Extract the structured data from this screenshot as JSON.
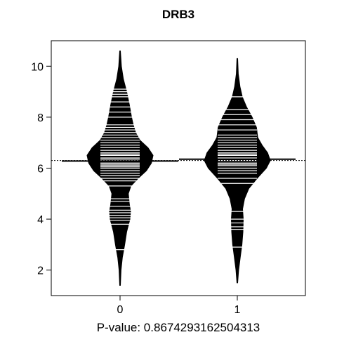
{
  "chart_data": {
    "type": "beanplot",
    "title": "DRB3",
    "xlabel": "P-value: 0.8674293162504313",
    "ylabel": "",
    "categories": [
      "0",
      "1"
    ],
    "ylim": [
      1.0,
      11.0
    ],
    "yticks": [
      "2",
      "4",
      "6",
      "8",
      "10"
    ],
    "overall_mean": 6.3,
    "grid": false,
    "legend": "none",
    "series": [
      {
        "category": "0",
        "range": [
          1.4,
          10.6
        ],
        "mean": 6.28,
        "density_profile": [
          [
            1.4,
            0.01
          ],
          [
            2.0,
            0.03
          ],
          [
            2.5,
            0.07
          ],
          [
            3.0,
            0.14
          ],
          [
            3.5,
            0.2
          ],
          [
            4.0,
            0.3
          ],
          [
            4.3,
            0.32
          ],
          [
            4.6,
            0.28
          ],
          [
            5.0,
            0.25
          ],
          [
            5.3,
            0.33
          ],
          [
            5.6,
            0.55
          ],
          [
            5.9,
            0.8
          ],
          [
            6.2,
            0.95
          ],
          [
            6.5,
            1.0
          ],
          [
            6.8,
            0.85
          ],
          [
            7.1,
            0.6
          ],
          [
            7.4,
            0.47
          ],
          [
            7.7,
            0.4
          ],
          [
            8.0,
            0.35
          ],
          [
            8.5,
            0.28
          ],
          [
            9.0,
            0.2
          ],
          [
            9.5,
            0.1
          ],
          [
            10.0,
            0.04
          ],
          [
            10.6,
            0.01
          ]
        ],
        "observations": [
          2.8,
          3.8,
          3.95,
          4.05,
          4.15,
          4.25,
          4.35,
          4.5,
          4.7,
          4.8,
          5.3,
          5.5,
          5.6,
          5.7,
          5.8,
          5.9,
          6.0,
          6.05,
          6.1,
          6.15,
          6.2,
          6.3,
          6.35,
          6.4,
          6.5,
          6.55,
          6.6,
          6.7,
          6.8,
          6.9,
          7.0,
          7.1,
          7.2,
          7.3,
          7.4,
          7.5,
          7.6,
          7.7,
          8.0,
          8.2,
          8.4,
          8.6,
          8.8,
          8.9,
          9.0,
          9.1
        ]
      },
      {
        "category": "1",
        "range": [
          1.5,
          10.3
        ],
        "mean": 6.35,
        "density_profile": [
          [
            1.5,
            0.01
          ],
          [
            2.0,
            0.04
          ],
          [
            2.5,
            0.09
          ],
          [
            3.0,
            0.14
          ],
          [
            3.5,
            0.17
          ],
          [
            4.0,
            0.18
          ],
          [
            4.4,
            0.16
          ],
          [
            4.8,
            0.22
          ],
          [
            5.2,
            0.35
          ],
          [
            5.6,
            0.6
          ],
          [
            6.0,
            0.88
          ],
          [
            6.3,
            1.0
          ],
          [
            6.6,
            0.92
          ],
          [
            6.9,
            0.75
          ],
          [
            7.2,
            0.62
          ],
          [
            7.6,
            0.58
          ],
          [
            8.0,
            0.45
          ],
          [
            8.4,
            0.28
          ],
          [
            8.8,
            0.15
          ],
          [
            9.2,
            0.08
          ],
          [
            9.7,
            0.03
          ],
          [
            10.3,
            0.01
          ]
        ],
        "observations": [
          2.9,
          3.6,
          3.7,
          3.85,
          4.0,
          4.3,
          5.4,
          5.6,
          5.8,
          5.9,
          6.0,
          6.1,
          6.15,
          6.2,
          6.3,
          6.35,
          6.4,
          6.5,
          6.55,
          6.6,
          6.7,
          6.8,
          6.9,
          7.0,
          7.1,
          7.2,
          7.3,
          7.5,
          7.7,
          7.9,
          8.1,
          8.3,
          8.8
        ]
      }
    ]
  }
}
